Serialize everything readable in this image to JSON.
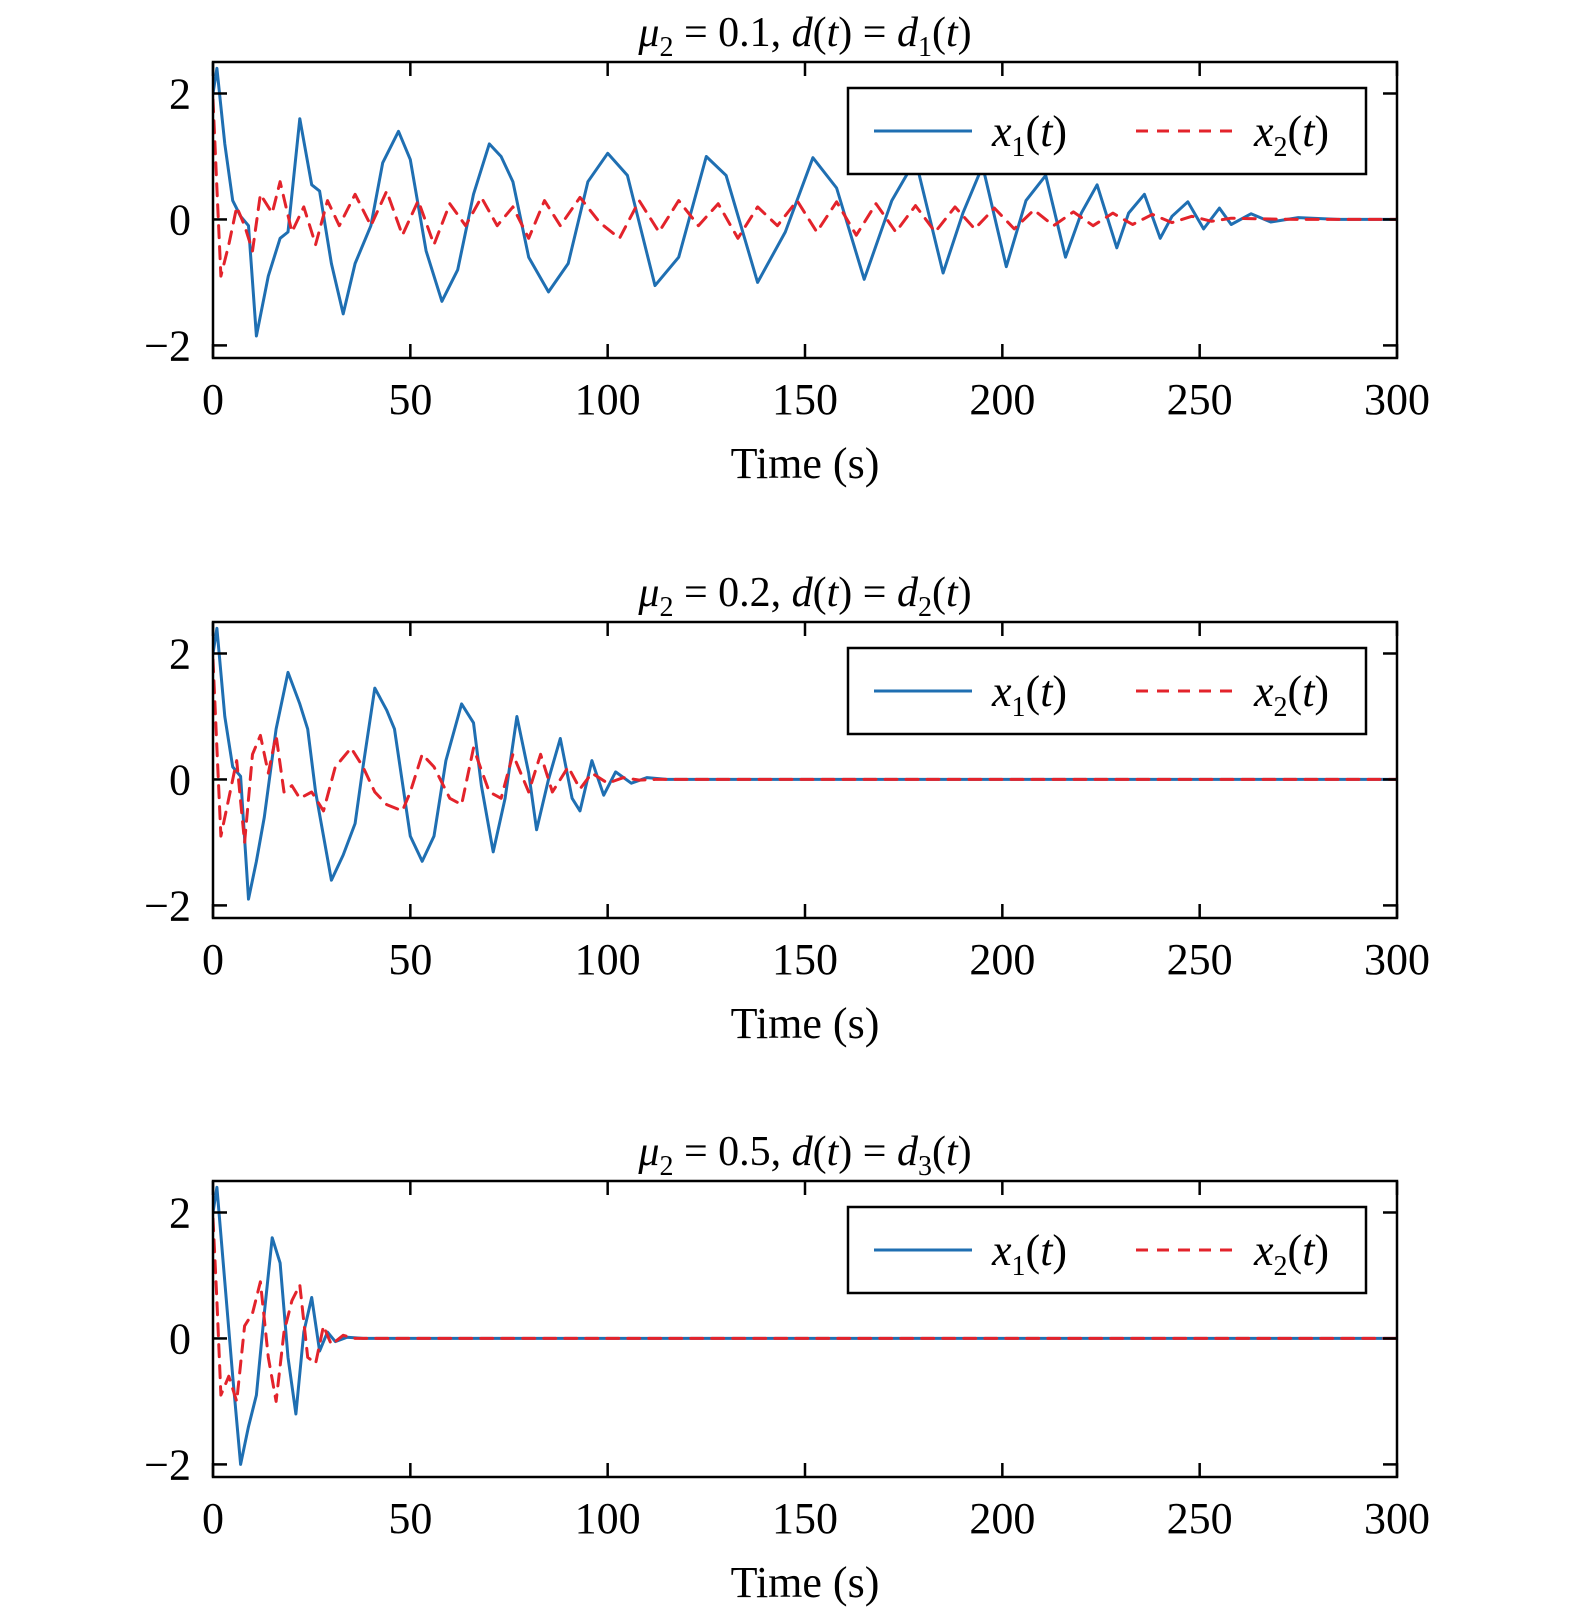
{
  "colors": {
    "x1": "#1f6fb2",
    "x2": "#e3232b",
    "axes": "#000000"
  },
  "chart_data": [
    {
      "type": "line",
      "title": "μ₂ = 0.1, d(t) = d₁(t)",
      "title_parts": {
        "mu_sub": "2",
        "mu_value": "= 0.1,",
        "d_sub": "1"
      },
      "xlabel": "Time (s)",
      "ylabel": "",
      "xlim": [
        0,
        300
      ],
      "ylim": [
        -2.2,
        2.5
      ],
      "xticks": [
        "0",
        "50",
        "100",
        "150",
        "200",
        "250",
        "300"
      ],
      "yticks": [
        "2",
        "0",
        "−2"
      ],
      "xtick_values": [
        0,
        50,
        100,
        150,
        200,
        250,
        300
      ],
      "ytick_values": [
        2,
        0,
        -2
      ],
      "legend": {
        "position": "top-right",
        "entries": [
          "x1(t)",
          "x2(t)"
        ]
      },
      "grid": false,
      "series": [
        {
          "name": "x1(t)",
          "style": "solid",
          "color": "#1f6fb2",
          "x": [
            0,
            1,
            3,
            5,
            7,
            9,
            11,
            14,
            17,
            19,
            22,
            25,
            27,
            30,
            33,
            36,
            40,
            43,
            47,
            50,
            54,
            58,
            62,
            66,
            70,
            73,
            76,
            80,
            85,
            90,
            95,
            100,
            105,
            112,
            118,
            125,
            130,
            138,
            145,
            152,
            158,
            165,
            172,
            178,
            185,
            190,
            195,
            201,
            206,
            211,
            216,
            220,
            224,
            229,
            232,
            236,
            240,
            243,
            247,
            251,
            255,
            258,
            263,
            268,
            275,
            285,
            300
          ],
          "y": [
            2.0,
            2.4,
            1.2,
            0.3,
            0.05,
            -0.1,
            -1.85,
            -0.9,
            -0.3,
            -0.2,
            1.6,
            0.55,
            0.45,
            -0.7,
            -1.5,
            -0.7,
            -0.1,
            0.9,
            1.4,
            0.95,
            -0.5,
            -1.3,
            -0.8,
            0.4,
            1.2,
            1.0,
            0.6,
            -0.6,
            -1.15,
            -0.7,
            0.6,
            1.05,
            0.7,
            -1.05,
            -0.6,
            1.0,
            0.7,
            -1.0,
            -0.2,
            0.98,
            0.5,
            -0.95,
            0.3,
            0.95,
            -0.85,
            0.1,
            0.85,
            -0.75,
            0.3,
            0.7,
            -0.6,
            0.1,
            0.55,
            -0.45,
            0.1,
            0.4,
            -0.3,
            0.05,
            0.28,
            -0.15,
            0.18,
            -0.08,
            0.09,
            -0.04,
            0.03,
            0.0,
            0.0
          ]
        },
        {
          "name": "x2(t)",
          "style": "dashed",
          "color": "#e3232b",
          "x": [
            0,
            1,
            2,
            4,
            6,
            8,
            10,
            12,
            15,
            17,
            20,
            23,
            26,
            29,
            32,
            36,
            40,
            44,
            48,
            52,
            56,
            60,
            64,
            68,
            72,
            76,
            80,
            84,
            88,
            93,
            98,
            103,
            108,
            113,
            118,
            123,
            128,
            133,
            138,
            143,
            148,
            153,
            158,
            163,
            168,
            173,
            178,
            183,
            188,
            193,
            198,
            203,
            208,
            213,
            218,
            223,
            228,
            233,
            238,
            243,
            248,
            253,
            258,
            265,
            275,
            300
          ],
          "y": [
            1.9,
            0.5,
            -0.9,
            -0.4,
            0.2,
            -0.1,
            -0.5,
            0.4,
            0.1,
            0.6,
            -0.2,
            0.2,
            -0.4,
            0.3,
            -0.1,
            0.4,
            -0.1,
            0.45,
            -0.25,
            0.3,
            -0.4,
            0.25,
            -0.1,
            0.35,
            -0.1,
            0.2,
            -0.3,
            0.3,
            -0.1,
            0.35,
            -0.05,
            -0.3,
            0.3,
            -0.2,
            0.3,
            -0.1,
            0.25,
            -0.3,
            0.2,
            -0.1,
            0.3,
            -0.2,
            0.28,
            -0.25,
            0.25,
            -0.2,
            0.22,
            -0.2,
            0.2,
            -0.15,
            0.18,
            -0.15,
            0.15,
            -0.1,
            0.12,
            -0.1,
            0.1,
            -0.08,
            0.08,
            -0.05,
            0.05,
            -0.03,
            0.02,
            0.01,
            0.0,
            0.0
          ]
        }
      ]
    },
    {
      "type": "line",
      "title": "μ₂ = 0.2, d(t) = d₂(t)",
      "title_parts": {
        "mu_sub": "2",
        "mu_value": "= 0.2,",
        "d_sub": "2"
      },
      "xlabel": "Time (s)",
      "ylabel": "",
      "xlim": [
        0,
        300
      ],
      "ylim": [
        -2.2,
        2.5
      ],
      "xticks": [
        "0",
        "50",
        "100",
        "150",
        "200",
        "250",
        "300"
      ],
      "yticks": [
        "2",
        "0",
        "−2"
      ],
      "xtick_values": [
        0,
        50,
        100,
        150,
        200,
        250,
        300
      ],
      "ytick_values": [
        2,
        0,
        -2
      ],
      "legend": {
        "position": "top-right",
        "entries": [
          "x1(t)",
          "x2(t)"
        ]
      },
      "grid": false,
      "series": [
        {
          "name": "x1(t)",
          "style": "solid",
          "color": "#1f6fb2",
          "x": [
            0,
            1,
            3,
            5,
            7,
            9,
            11,
            13,
            16,
            19,
            22,
            24,
            26,
            30,
            33,
            36,
            38,
            41,
            44,
            46,
            50,
            53,
            56,
            59,
            63,
            66,
            68,
            71,
            74,
            77,
            80,
            82,
            85,
            88,
            91,
            93,
            96,
            99,
            102,
            106,
            110,
            115,
            120,
            300
          ],
          "y": [
            2.0,
            2.4,
            1.0,
            0.2,
            0.05,
            -1.9,
            -1.3,
            -0.6,
            0.8,
            1.7,
            1.2,
            0.8,
            -0.2,
            -1.6,
            -1.2,
            -0.7,
            0.2,
            1.45,
            1.1,
            0.8,
            -0.9,
            -1.3,
            -0.9,
            0.3,
            1.2,
            0.9,
            -0.1,
            -1.15,
            -0.3,
            1.0,
            0.1,
            -0.8,
            0.0,
            0.65,
            -0.3,
            -0.5,
            0.3,
            -0.25,
            0.12,
            -0.06,
            0.03,
            0.0,
            0.0,
            0.0
          ]
        },
        {
          "name": "x2(t)",
          "style": "dashed",
          "color": "#e3232b",
          "x": [
            0,
            1,
            2,
            4,
            6,
            8,
            10,
            12,
            14,
            16,
            18,
            20,
            22,
            25,
            28,
            31,
            35,
            38,
            41,
            44,
            48,
            50,
            53,
            56,
            60,
            63,
            66,
            70,
            73,
            76,
            80,
            83,
            86,
            90,
            93,
            96,
            100,
            104,
            108,
            112,
            300
          ],
          "y": [
            1.9,
            0.5,
            -0.9,
            -0.3,
            0.3,
            -1.0,
            0.4,
            0.7,
            0.1,
            0.7,
            -0.2,
            -0.1,
            -0.3,
            -0.2,
            -0.5,
            0.2,
            0.5,
            0.2,
            -0.2,
            -0.4,
            -0.5,
            -0.2,
            0.4,
            0.2,
            -0.3,
            -0.4,
            0.5,
            -0.2,
            -0.3,
            0.4,
            -0.2,
            0.4,
            -0.2,
            0.2,
            -0.15,
            0.1,
            -0.06,
            0.03,
            -0.01,
            0.0,
            0.0
          ]
        }
      ]
    },
    {
      "type": "line",
      "title": "μ₂ = 0.5, d(t) = d₃(t)",
      "title_parts": {
        "mu_sub": "2",
        "mu_value": "= 0.5,",
        "d_sub": "3"
      },
      "xlabel": "Time (s)",
      "ylabel": "",
      "xlim": [
        0,
        300
      ],
      "ylim": [
        -2.2,
        2.5
      ],
      "xticks": [
        "0",
        "50",
        "100",
        "150",
        "200",
        "250",
        "300"
      ],
      "yticks": [
        "2",
        "0",
        "−2"
      ],
      "xtick_values": [
        0,
        50,
        100,
        150,
        200,
        250,
        300
      ],
      "ytick_values": [
        2,
        0,
        -2
      ],
      "legend": {
        "position": "top-right",
        "entries": [
          "x1(t)",
          "x2(t)"
        ]
      },
      "grid": false,
      "series": [
        {
          "name": "x1(t)",
          "style": "solid",
          "color": "#1f6fb2",
          "x": [
            0,
            1,
            3,
            5,
            7,
            9,
            11,
            13,
            15,
            17,
            19,
            21,
            23,
            25,
            27,
            29,
            31,
            34,
            38,
            45,
            60,
            300
          ],
          "y": [
            2.0,
            2.4,
            0.9,
            -0.6,
            -2.0,
            -1.4,
            -0.9,
            0.4,
            1.6,
            1.2,
            -0.3,
            -1.2,
            0.1,
            0.65,
            -0.2,
            0.1,
            -0.05,
            0.02,
            0.0,
            0.0,
            0.0,
            0.0
          ]
        },
        {
          "name": "x2(t)",
          "style": "dashed",
          "color": "#e3232b",
          "x": [
            0,
            1,
            2,
            4,
            6,
            8,
            10,
            12,
            14,
            16,
            18,
            20,
            22,
            24,
            26,
            28,
            30,
            33,
            36,
            40,
            50,
            300
          ],
          "y": [
            1.9,
            0.6,
            -0.9,
            -0.6,
            -1.0,
            0.2,
            0.4,
            0.9,
            -0.3,
            -1.0,
            0.1,
            0.6,
            0.85,
            -0.3,
            -0.4,
            0.2,
            -0.1,
            0.05,
            0.0,
            0.0,
            0.0,
            0.0
          ]
        }
      ]
    }
  ]
}
